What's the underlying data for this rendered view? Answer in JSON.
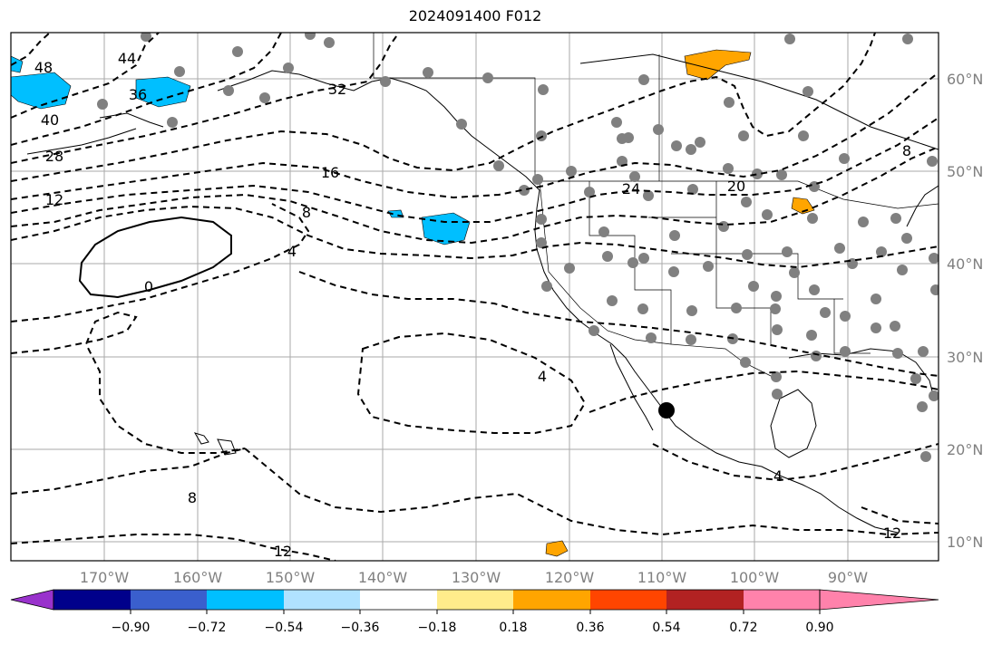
{
  "title": "2024091400 F012",
  "lat_labels": [
    "60°N",
    "50°N",
    "40°N",
    "30°N",
    "20°N",
    "10°N"
  ],
  "lon_labels": [
    "170°W",
    "160°W",
    "150°W",
    "140°W",
    "130°W",
    "120°W",
    "110°W",
    "100°W",
    "90°W"
  ],
  "contour_labels": [
    "48",
    "44",
    "40",
    "36",
    "32",
    "28",
    "24",
    "20",
    "16",
    "12",
    "8",
    "8",
    "4",
    "4",
    "4",
    "0",
    "8",
    "12",
    "12"
  ],
  "colorbar": {
    "ticks": [
      "−0.90",
      "−0.72",
      "−0.54",
      "−0.36",
      "−0.18",
      "0.18",
      "0.36",
      "0.54",
      "0.72",
      "0.90"
    ],
    "colors": [
      "#9932cc",
      "#00008b",
      "#3a5fcd",
      "#00bfff",
      "#b0e2ff",
      "#ffffff",
      "#ffec8b",
      "#ffa500",
      "#ff4500",
      "#b22222",
      "#ff82ab"
    ]
  }
}
